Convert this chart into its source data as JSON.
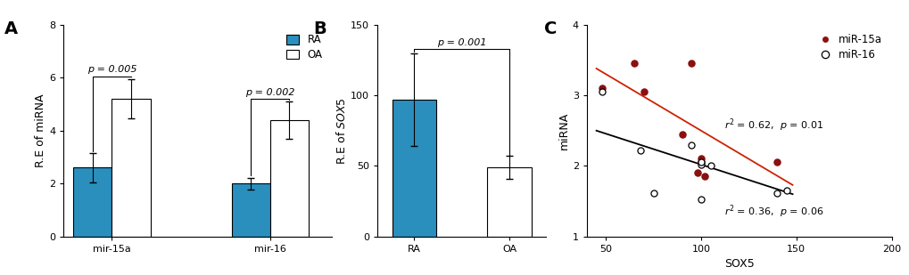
{
  "panel_A": {
    "groups": [
      "mir-15a",
      "mir-16"
    ],
    "RA_means": [
      2.6,
      2.0
    ],
    "RA_errors": [
      0.55,
      0.22
    ],
    "OA_means": [
      5.2,
      4.4
    ],
    "OA_errors": [
      0.75,
      0.7
    ],
    "ylabel": "R.E of miRNA",
    "ylim": [
      0,
      8
    ],
    "yticks": [
      0,
      2,
      4,
      6,
      8
    ],
    "pvals": [
      "p = 0.005",
      "p = 0.002"
    ],
    "ra_color": "#2b8fbe",
    "oa_color": "#ffffff",
    "bar_edge": "#000000"
  },
  "panel_B": {
    "groups": [
      "RA",
      "OA"
    ],
    "means": [
      97,
      49
    ],
    "errors": [
      33,
      8
    ],
    "ylabel_normal": "R.E of ",
    "ylabel_italic": "SOX5",
    "ylim": [
      0,
      150
    ],
    "yticks": [
      0,
      50,
      100,
      150
    ],
    "pval": "p = 0.001",
    "ra_color": "#2b8fbe",
    "oa_color": "#ffffff",
    "bar_edge": "#000000"
  },
  "panel_C": {
    "mir15a_x": [
      48,
      65,
      70,
      90,
      95,
      98,
      100,
      100,
      102,
      140
    ],
    "mir15a_y": [
      3.1,
      3.45,
      3.05,
      2.45,
      3.45,
      1.9,
      2.05,
      2.1,
      1.85,
      2.05
    ],
    "mir16_x": [
      48,
      68,
      75,
      95,
      100,
      100,
      100,
      105,
      140,
      145
    ],
    "mir16_y": [
      3.05,
      2.22,
      1.62,
      2.3,
      2.02,
      2.05,
      1.52,
      2.0,
      1.62,
      1.65
    ],
    "mir15a_line_x": [
      45,
      148
    ],
    "mir15a_line_y": [
      3.38,
      1.73
    ],
    "mir16_line_x": [
      45,
      148
    ],
    "mir16_line_y": [
      2.5,
      1.6
    ],
    "xlabel": "SOX5",
    "ylabel": "miRNA",
    "xlim": [
      40,
      200
    ],
    "ylim": [
      1,
      4
    ],
    "xticks": [
      50,
      100,
      150,
      200
    ],
    "yticks": [
      1,
      2,
      3,
      4
    ],
    "r2_15a": "r² = 0.62,  p = 0.01",
    "r2_16": "r² = 0.36,  p = 0.06",
    "mir15a_color": "#8b1010",
    "mir16_color": "#000000",
    "mir15a_line_color": "#cc2200",
    "mir16_line_color": "#000000"
  }
}
